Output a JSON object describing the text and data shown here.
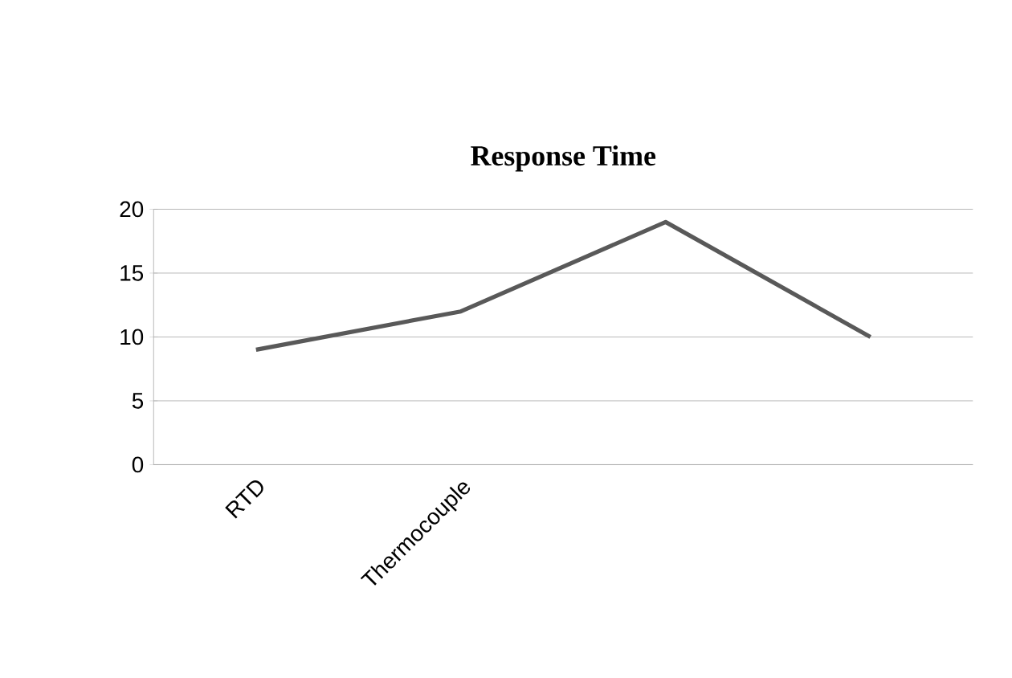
{
  "chart_data": {
    "type": "line",
    "title": "Response Time",
    "categories": [
      "RTD",
      "Thermocouple",
      null,
      null
    ],
    "series": [
      {
        "color": "#595959",
        "values": [
          9,
          12,
          19,
          10
        ]
      }
    ],
    "ylim": [
      0,
      20
    ],
    "yticks": [
      0,
      5,
      10,
      15,
      20
    ],
    "grid": "y",
    "marker": "none",
    "line_style": "solid"
  }
}
